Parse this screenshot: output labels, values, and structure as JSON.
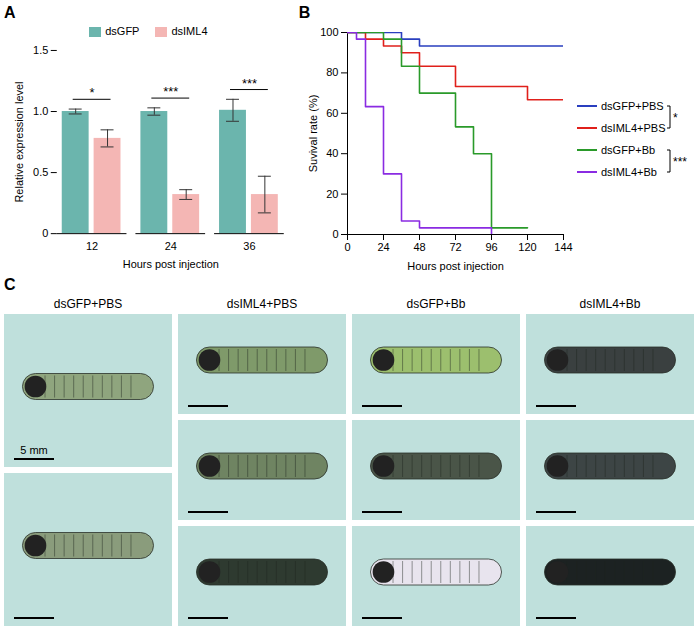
{
  "chart_data": [
    {
      "panel": "A",
      "type": "bar",
      "x_label": "Hours post injection",
      "y_label": "Relative expression level",
      "categories": [
        "12",
        "24",
        "36"
      ],
      "series": [
        {
          "name": "dsGFP",
          "color": "#6bb5ad",
          "values": [
            1.0,
            1.0,
            1.01
          ],
          "errors": [
            0.02,
            0.03,
            0.09
          ]
        },
        {
          "name": "dsIML4",
          "color": "#f4b6b4",
          "values": [
            0.78,
            0.32,
            0.32
          ],
          "errors": [
            0.07,
            0.04,
            0.15
          ]
        }
      ],
      "significance": [
        "*",
        "***",
        "***"
      ],
      "ylim": [
        0,
        1.5
      ],
      "yticks": [
        0,
        0.5,
        {
          "value": 1,
          "label": "1.0"
        },
        1.5
      ],
      "legend": "top"
    },
    {
      "panel": "B",
      "type": "line",
      "x_label": "Hours post injection",
      "y_label": "Suvival rate (%)",
      "series": [
        {
          "name": "dsGFP+PBS",
          "color": "#2a3fbf",
          "x": [
            0,
            36,
            48,
            144
          ],
          "values": [
            100,
            96.7,
            93.3,
            93.3
          ]
        },
        {
          "name": "dsIML4+PBS",
          "color": "#e0201b",
          "x": [
            0,
            12,
            24,
            36,
            48,
            72,
            120,
            144
          ],
          "values": [
            100,
            96.7,
            93.3,
            90,
            83.3,
            73.3,
            66.7,
            66.7
          ]
        },
        {
          "name": "dsGFP+Bb",
          "color": "#2a9a2a",
          "x": [
            0,
            24,
            36,
            48,
            72,
            84,
            96,
            120
          ],
          "values": [
            100,
            96.7,
            83.3,
            70,
            53.3,
            40,
            3.3,
            3.3
          ]
        },
        {
          "name": "dsIML4+Bb",
          "color": "#8a2be2",
          "x": [
            0,
            6,
            12,
            24,
            36,
            48,
            96
          ],
          "values": [
            100,
            96.7,
            63.3,
            30,
            6.7,
            3.3,
            0
          ]
        }
      ],
      "comparisons": [
        {
          "series": [
            "dsGFP+PBS",
            "dsIML4+PBS"
          ],
          "label": "*"
        },
        {
          "series": [
            "dsGFP+Bb",
            "dsIML4+Bb"
          ],
          "label": "***"
        }
      ],
      "xlim": [
        0,
        144
      ],
      "xticks": [
        0,
        24,
        48,
        72,
        96,
        120,
        144
      ],
      "ylim": [
        0,
        100
      ],
      "yticks": [
        0,
        20,
        40,
        60,
        80,
        100
      ],
      "line_style": "step",
      "legend": "right"
    }
  ],
  "panel_c": {
    "panel": "C",
    "columns": [
      {
        "label": "dsGFP+PBS",
        "images": 2
      },
      {
        "label": "dsIML4+PBS",
        "images": 3
      },
      {
        "label": "dsGFP+Bb",
        "images": 3
      },
      {
        "label": "dsIML4+Bb",
        "images": 3
      }
    ],
    "scale_bar": "5 mm"
  }
}
